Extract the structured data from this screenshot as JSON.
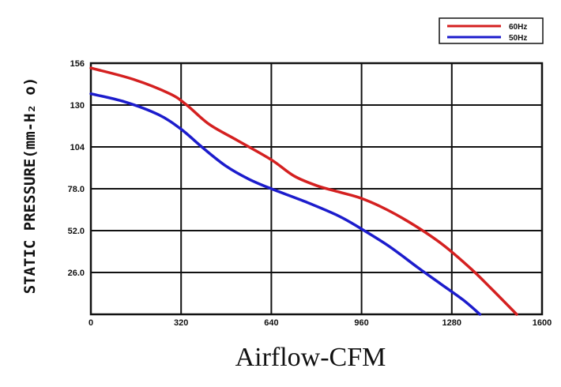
{
  "chart_data": {
    "type": "line",
    "xlabel": "Airflow-CFM",
    "ylabel": "STATIC PRESSURE(mm-H₂ o)",
    "xlim": [
      0,
      1600
    ],
    "ylim": [
      0,
      156
    ],
    "x_ticks": [
      "0",
      "320",
      "640",
      "960",
      "1280",
      "1600"
    ],
    "y_ticks": [
      "26.0",
      "52.0",
      "78.0",
      "104",
      "130",
      "156"
    ],
    "grid": true,
    "legend_position": "top-right",
    "series": [
      {
        "name": "60Hz",
        "color": "#d42020",
        "x": [
          0,
          150,
          280,
          340,
          420,
          520,
          640,
          720,
          800,
          880,
          960,
          1050,
          1150,
          1250,
          1350,
          1420,
          1510
        ],
        "y": [
          153,
          146,
          137,
          130,
          118,
          108,
          96,
          86,
          80,
          76,
          72,
          65,
          55,
          43,
          28,
          16,
          0
        ]
      },
      {
        "name": "50Hz",
        "color": "#1c1ccc",
        "x": [
          0,
          120,
          240,
          320,
          400,
          480,
          560,
          640,
          760,
          880,
          960,
          1060,
          1160,
          1240,
          1320,
          1380
        ],
        "y": [
          137,
          132,
          124,
          115,
          103,
          92,
          84,
          78,
          70,
          61,
          53,
          42,
          29,
          19,
          9,
          0
        ]
      }
    ]
  }
}
